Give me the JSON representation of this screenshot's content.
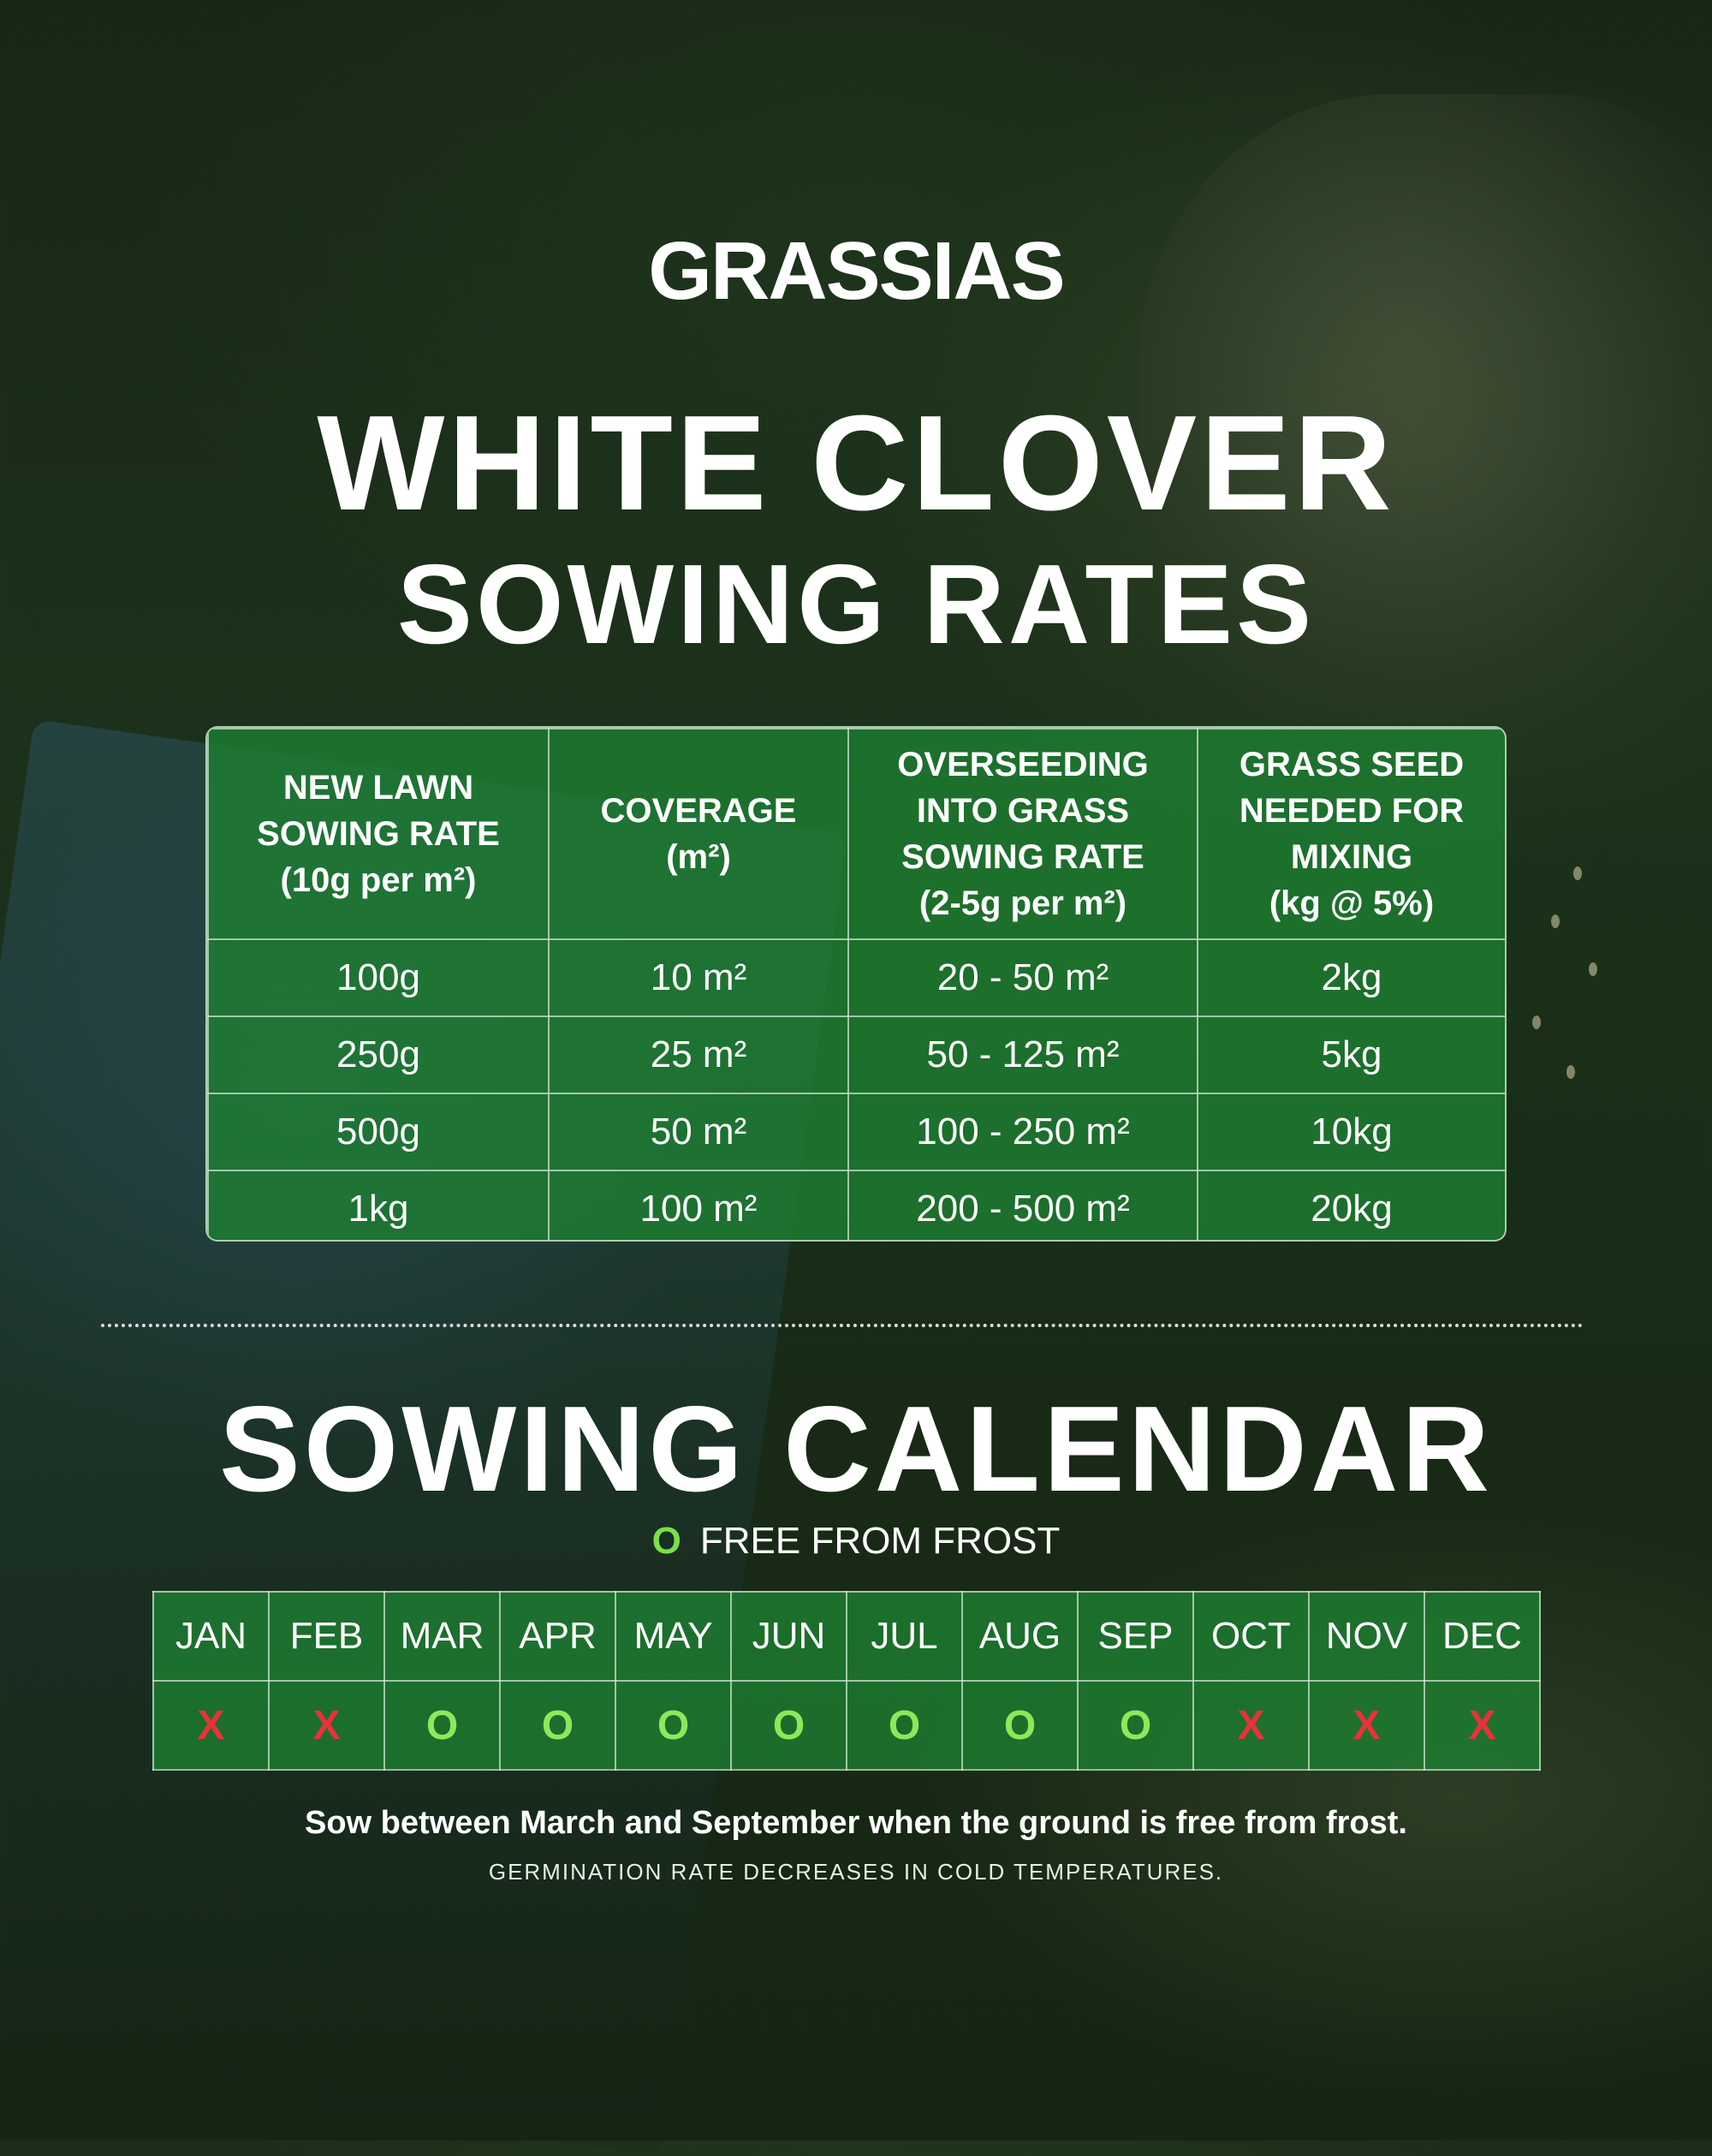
{
  "brand": "GRASSIAS",
  "title_line1": "WHITE CLOVER",
  "title_line2": "SOWING RATES",
  "rates_table": {
    "headers": [
      [
        "NEW LAWN",
        "SOWING RATE",
        "(10g per m²)"
      ],
      [
        "COVERAGE",
        "(m²)"
      ],
      [
        "OVERSEEDING",
        "INTO GRASS",
        "SOWING RATE",
        "(2-5g per m²)"
      ],
      [
        "GRASS SEED",
        "NEEDED FOR",
        "MIXING",
        "(kg @ 5%)"
      ]
    ],
    "rows": [
      [
        "100g",
        "10 m²",
        "20 - 50 m²",
        "2kg"
      ],
      [
        "250g",
        "25 m²",
        "50 - 125 m²",
        "5kg"
      ],
      [
        "500g",
        "50 m²",
        "100 - 250 m²",
        "10kg"
      ],
      [
        "1kg",
        "100 m²",
        "200 - 500 m²",
        "20kg"
      ]
    ]
  },
  "calendar": {
    "title": "SOWING CALENDAR",
    "legend_symbol": "O",
    "legend_text": "FREE FROM FROST",
    "months": [
      "JAN",
      "FEB",
      "MAR",
      "APR",
      "MAY",
      "JUN",
      "JUL",
      "AUG",
      "SEP",
      "OCT",
      "NOV",
      "DEC"
    ],
    "status": [
      "X",
      "X",
      "O",
      "O",
      "O",
      "O",
      "O",
      "O",
      "O",
      "X",
      "X",
      "X"
    ],
    "colors": {
      "suitable": "#8ee85a",
      "unsuitable": "#e8323a",
      "cell_green": "#1e8232"
    }
  },
  "note": "Sow between March and September when the ground is free from frost.",
  "subnote": "GERMINATION RATE DECREASES IN COLD TEMPERATURES."
}
